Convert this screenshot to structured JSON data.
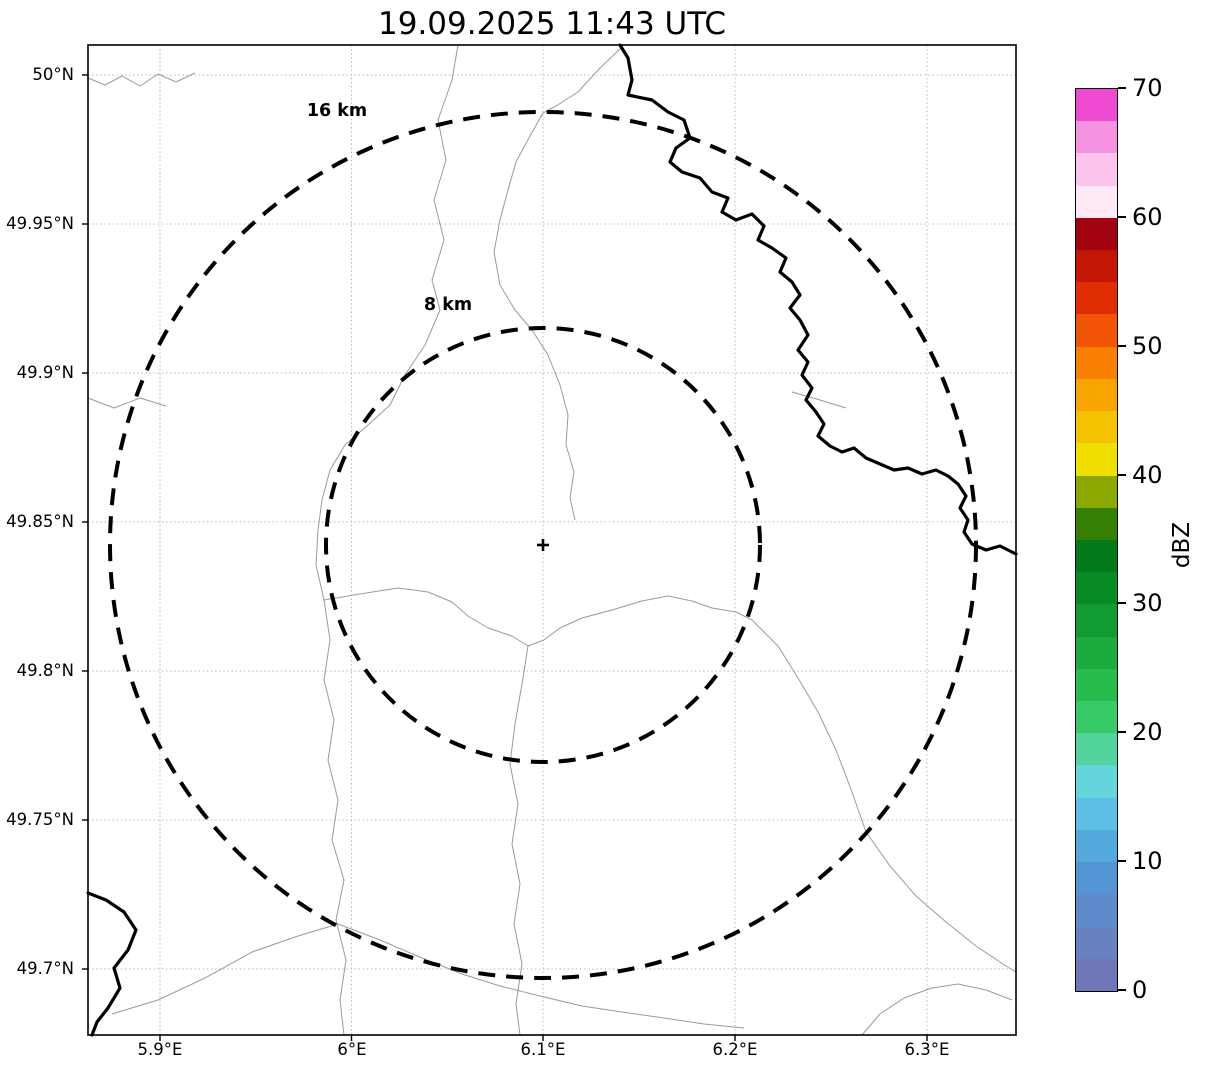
{
  "title": "19.09.2025 11:43 UTC",
  "map": {
    "center_marker": "+",
    "range_rings": [
      {
        "label": "16 km"
      },
      {
        "label": "8 km"
      }
    ],
    "y_ticks": [
      "50°N",
      "49.95°N",
      "49.9°N",
      "49.85°N",
      "49.8°N",
      "49.75°N",
      "49.7°N"
    ],
    "x_ticks": [
      "5.9°E",
      "6°E",
      "6.1°E",
      "6.2°E",
      "6.3°E"
    ]
  },
  "colorbar": {
    "label": "dBZ",
    "tick_labels": [
      "0",
      "10",
      "20",
      "30",
      "40",
      "50",
      "60",
      "70"
    ],
    "colors_bottom_to_top": [
      "#7077b9",
      "#6781c2",
      "#5d8bcb",
      "#5496d4",
      "#55aadd",
      "#5fc0e5",
      "#64d5da",
      "#52d49c",
      "#37ca67",
      "#28bc4d",
      "#1cab3d",
      "#119b30",
      "#088a25",
      "#02791b",
      "#347f04",
      "#8aa800",
      "#f0e000",
      "#f5c200",
      "#f7a300",
      "#f87f00",
      "#f25405",
      "#e02d02",
      "#c41604",
      "#a10410",
      "#fdeaf6",
      "#fac4ec",
      "#f693e0",
      "#ee4ad2"
    ]
  }
}
